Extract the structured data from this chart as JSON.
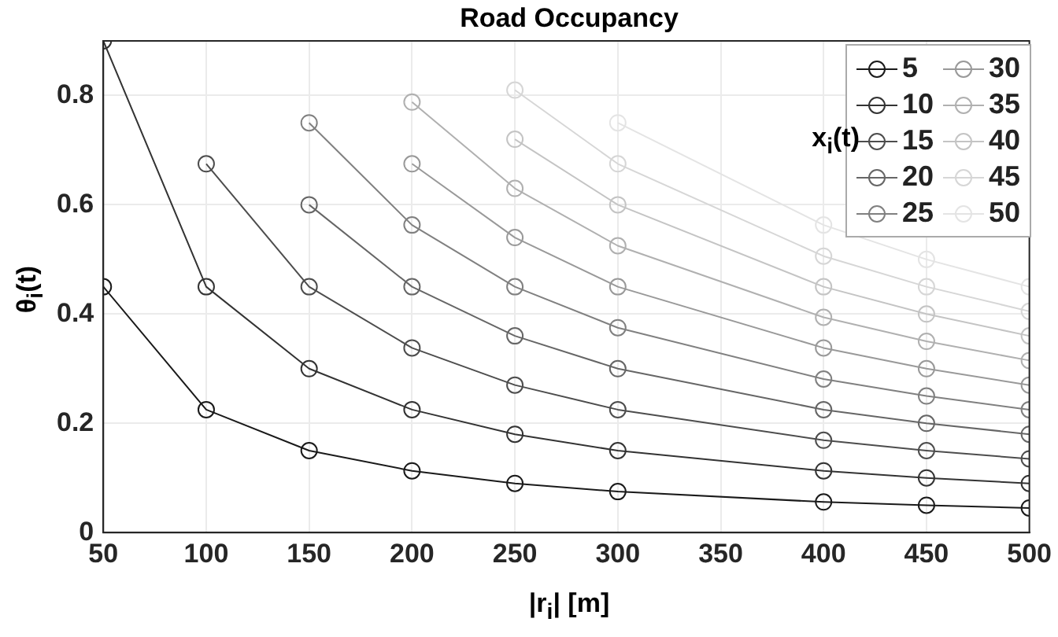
{
  "chart_data": {
    "type": "line",
    "title": "Road Occupancy",
    "xlabel": "|r$_{i}$| [m]",
    "ylabel": "θ$_{i}$(t)",
    "legend_title": "x$_{i}$(t)",
    "x": [
      50,
      100,
      150,
      200,
      250,
      300,
      400,
      450,
      500
    ],
    "xlim": [
      50,
      500
    ],
    "xticks": [
      50,
      100,
      150,
      200,
      250,
      300,
      350,
      400,
      450,
      500
    ],
    "ylim": [
      0,
      0.9
    ],
    "yticks": [
      0,
      0.2,
      0.4,
      0.6,
      0.8
    ],
    "grid": true,
    "legend": "top right",
    "marker": "circle",
    "line_style": "solid",
    "series": [
      {
        "name": "5",
        "color": "#1a1a1a",
        "values": [
          0.45,
          0.225,
          0.15,
          0.113,
          0.09,
          0.075,
          0.056,
          0.05,
          0.045
        ]
      },
      {
        "name": "10",
        "color": "#333333",
        "values": [
          0.9,
          0.45,
          0.3,
          0.225,
          0.18,
          0.15,
          0.113,
          0.1,
          0.09
        ]
      },
      {
        "name": "15",
        "color": "#4d4d4d",
        "values": [
          null,
          0.675,
          0.45,
          0.338,
          0.27,
          0.225,
          0.169,
          0.15,
          0.135
        ]
      },
      {
        "name": "20",
        "color": "#666666",
        "values": [
          null,
          null,
          0.6,
          0.45,
          0.36,
          0.3,
          0.225,
          0.2,
          0.18
        ]
      },
      {
        "name": "25",
        "color": "#808080",
        "values": [
          null,
          null,
          0.75,
          0.563,
          0.45,
          0.375,
          0.281,
          0.25,
          0.225
        ]
      },
      {
        "name": "30",
        "color": "#999999",
        "values": [
          null,
          null,
          null,
          0.675,
          0.54,
          0.45,
          0.338,
          0.3,
          0.27
        ]
      },
      {
        "name": "35",
        "color": "#b0b0b0",
        "values": [
          null,
          null,
          null,
          0.788,
          0.63,
          0.525,
          0.394,
          0.35,
          0.315
        ]
      },
      {
        "name": "40",
        "color": "#c4c4c4",
        "values": [
          null,
          null,
          null,
          null,
          0.72,
          0.6,
          0.45,
          0.4,
          0.36
        ]
      },
      {
        "name": "45",
        "color": "#d6d6d6",
        "values": [
          null,
          null,
          null,
          null,
          0.81,
          0.675,
          0.506,
          0.45,
          0.405
        ]
      },
      {
        "name": "50",
        "color": "#e4e4e4",
        "values": [
          null,
          null,
          null,
          null,
          null,
          0.75,
          0.563,
          0.5,
          0.45
        ]
      }
    ]
  }
}
